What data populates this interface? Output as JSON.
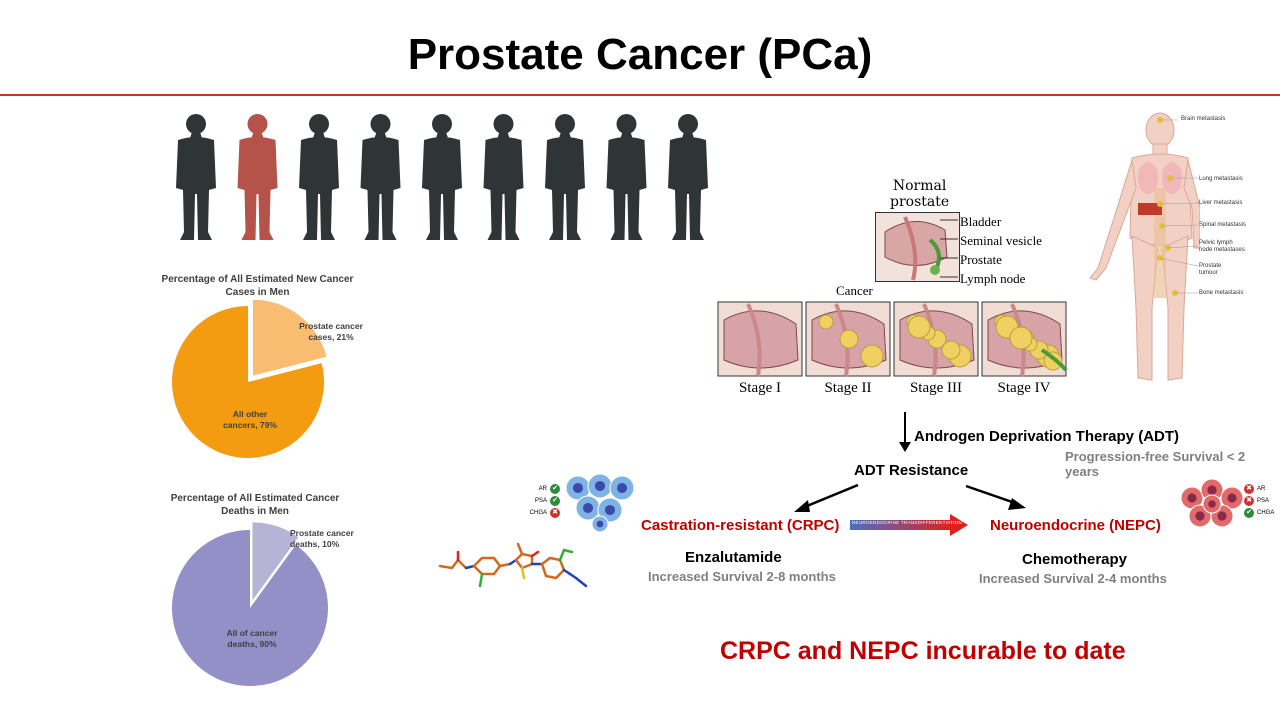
{
  "title": "Prostate Cancer (PCa)",
  "colors": {
    "rule": "#c0392b",
    "accent_red": "#c00000",
    "silhouette": "#2f3537",
    "silhouette_highlight": "#b5524a"
  },
  "silhouettes": {
    "count": 9,
    "highlighted_index": 1
  },
  "chart_data": [
    {
      "type": "pie",
      "title": "Percentage of All Estimated New Cancer Cases in Men",
      "slices": [
        {
          "label": "Prostate cancer cases, 21%",
          "value": 21,
          "color": "#f9bd72"
        },
        {
          "label": "All other cancers, 79%",
          "value": 79,
          "color": "#f39c12"
        }
      ]
    },
    {
      "type": "pie",
      "title": "Percentage of All Estimated Cancer Deaths in Men",
      "slices": [
        {
          "label": "Prostate cancer deaths, 10%",
          "value": 10,
          "color": "#b6b3d6"
        },
        {
          "label": "All of cancer deaths, 90%",
          "value": 90,
          "color": "#938fc7"
        }
      ]
    }
  ],
  "pie1": {
    "title_line1": "Percentage of All Estimated New Cancer",
    "title_line2": "Cases in Men",
    "small_line1": "Prostate cancer",
    "small_line2": "cases, 21%",
    "big_line1": "All other",
    "big_line2": "cancers, 79%"
  },
  "pie2": {
    "title_line1": "Percentage of All Estimated Cancer",
    "title_line2": "Deaths in Men",
    "small_line1": "Prostate cancer",
    "small_line2": "deaths, 10%",
    "big_line1": "All of cancer",
    "big_line2": "deaths, 90%"
  },
  "anatomy": {
    "normal_line1": "Normal",
    "normal_line2": "prostate",
    "labels": [
      "Bladder",
      "Seminal vesicle",
      "Prostate",
      "Lymph node"
    ],
    "cancer": "Cancer",
    "stages": [
      "Stage I",
      "Stage II",
      "Stage III",
      "Stage IV"
    ]
  },
  "body_labels": [
    "Brain metastasis",
    "Lung metastasis",
    "Liver metastasis",
    "Spinal metastasis",
    "Pelvic lymph",
    "node metastases",
    "Prostate",
    "tumour",
    "Bone metastasis"
  ],
  "flow": {
    "adt": "Androgen Deprivation Therapy (ADT)",
    "pfs": "Progression-free Survival < 2 years",
    "resistance": "ADT Resistance",
    "crpc": "Castration-resistant (CRPC)",
    "transdiff": "NEUROENDOCRINE TRANSDIFFERENTIATION",
    "nepc": "Neuroendocrine (NEPC)",
    "crpc_drug": "Enzalutamide",
    "crpc_survival": "Increased Survival 2-8 months",
    "nepc_drug": "Chemotherapy",
    "nepc_survival": "Increased Survival 2-4 months",
    "conclusion": "CRPC and NEPC incurable to date"
  },
  "markers_left": [
    {
      "label": "AR",
      "status": "check"
    },
    {
      "label": "PSA",
      "status": "check"
    },
    {
      "label": "CHGA",
      "status": "cross"
    }
  ],
  "markers_right": [
    {
      "label": "AR",
      "status": "cross"
    },
    {
      "label": "PSA",
      "status": "cross"
    },
    {
      "label": "CHGA",
      "status": "check"
    }
  ]
}
